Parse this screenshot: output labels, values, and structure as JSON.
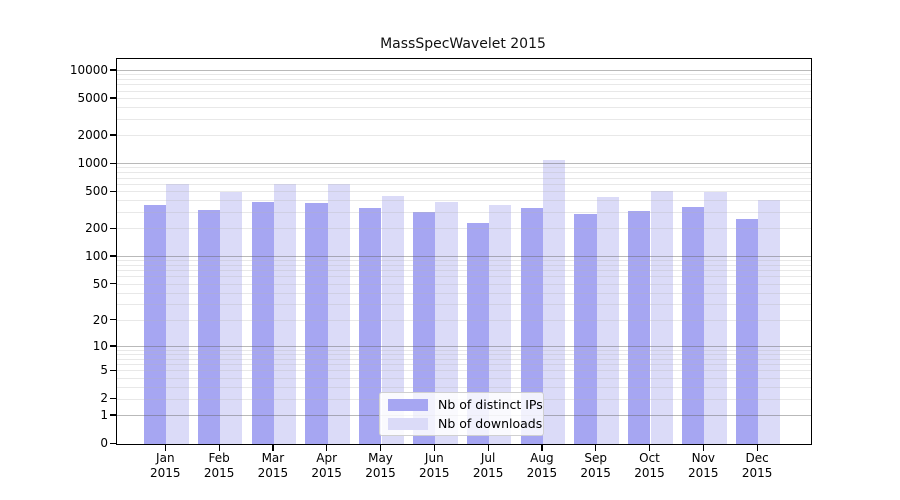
{
  "figure": {
    "background": "#ffffff",
    "axis_color": "#000000"
  },
  "chart_data": {
    "type": "bar",
    "title": "MassSpecWavelet 2015",
    "year": "2015",
    "months": [
      "Jan",
      "Feb",
      "Mar",
      "Apr",
      "May",
      "Jun",
      "Jul",
      "Aug",
      "Sep",
      "Oct",
      "Nov",
      "Dec"
    ],
    "categories": [
      "Jan 2015",
      "Feb 2015",
      "Mar 2015",
      "Apr 2015",
      "May 2015",
      "Jun 2015",
      "Jul 2015",
      "Aug 2015",
      "Sep 2015",
      "Oct 2015",
      "Nov 2015",
      "Dec 2015"
    ],
    "series": [
      {
        "name": "Nb of distinct IPs",
        "color": "#a6a6f2",
        "values": [
          365,
          325,
          395,
          385,
          335,
          305,
          235,
          335,
          290,
          310,
          350,
          255
        ]
      },
      {
        "name": "Nb of downloads",
        "color": "#dbdbf8",
        "values": [
          610,
          505,
          610,
          605,
          450,
          395,
          365,
          1100,
          440,
          520,
          505,
          415
        ]
      }
    ],
    "y_ticks": [
      0,
      1,
      2,
      5,
      10,
      20,
      50,
      100,
      200,
      500,
      1000,
      2000,
      5000,
      10000
    ],
    "y_scale": "log10(value+1)",
    "ylim": [
      0,
      13500
    ],
    "grid": {
      "orientation": "horizontal",
      "major_at": [
        1,
        10,
        100,
        1000,
        10000
      ],
      "minor_color": "#e3e3e3",
      "major_color": "#9a9a9a"
    },
    "legend": {
      "position": "bottom-center",
      "items": [
        "Nb of distinct IPs",
        "Nb of downloads"
      ]
    }
  }
}
